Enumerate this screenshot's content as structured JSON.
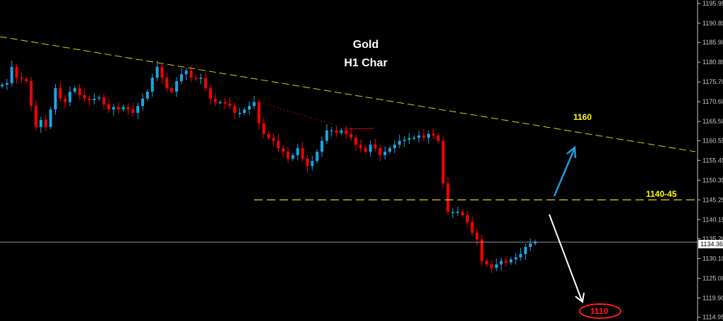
{
  "chart_data": {
    "type": "candlestick",
    "title": "Gold",
    "subtitle": "H1 Char",
    "ylim": [
      1114.95,
      1195.95
    ],
    "y_ticks": [
      "1195.95",
      "1190.85",
      "1185.90",
      "1180.80",
      "1175.70",
      "1170.60",
      "1165.50",
      "1160.55",
      "1155.45",
      "1150.35",
      "1145.25",
      "1140.15",
      "1135.20",
      "1130.10",
      "1125.00",
      "1119.90",
      "1114.95"
    ],
    "current_price": "1134.36",
    "grid": false,
    "colors": {
      "bull": "#1aa6e6",
      "bear": "#ff0000",
      "trendline": "#d4d400",
      "level": "#c8c800",
      "current": "#8a93a8"
    },
    "closes": [
      1175.0,
      1175.4,
      1179.6,
      1176.8,
      1176.5,
      1175.9,
      1169.5,
      1164.1,
      1165.9,
      1164.1,
      1168.6,
      1174.1,
      1171.4,
      1170.5,
      1173.2,
      1174.1,
      1172.3,
      1171.4,
      1171.0,
      1171.4,
      1171.7,
      1169.9,
      1168.6,
      1169.2,
      1168.6,
      1169.2,
      1168.6,
      1167.7,
      1169.5,
      1171.4,
      1173.2,
      1176.8,
      1179.6,
      1176.8,
      1174.1,
      1173.2,
      1175.9,
      1177.7,
      1178.6,
      1176.8,
      1176.5,
      1176.8,
      1174.1,
      1171.4,
      1170.5,
      1170.5,
      1170.1,
      1169.5,
      1167.7,
      1167.7,
      1168.6,
      1169.5,
      1170.5,
      1165.0,
      1162.3,
      1161.3,
      1160.5,
      1158.6,
      1157.7,
      1155.9,
      1156.8,
      1158.6,
      1155.9,
      1154.0,
      1155.3,
      1157.7,
      1160.5,
      1163.2,
      1163.2,
      1162.6,
      1163.2,
      1162.3,
      1161.3,
      1159.5,
      1158.6,
      1157.7,
      1159.5,
      1158.6,
      1156.8,
      1157.7,
      1158.6,
      1159.5,
      1160.5,
      1160.8,
      1161.2,
      1161.3,
      1161.9,
      1161.3,
      1162.3,
      1161.9,
      1160.5,
      1149.5,
      1142.2,
      1142.2,
      1142.2,
      1141.3,
      1139.5,
      1136.8,
      1135.0,
      1129.5,
      1128.6,
      1127.7,
      1128.6,
      1129.5,
      1129.1,
      1129.9,
      1130.4,
      1131.3,
      1133.1,
      1134.0,
      1134.4
    ],
    "lines": [
      {
        "kind": "trendline",
        "from_price": 1187.4,
        "to_price": 1157.7,
        "style": "dashed"
      },
      {
        "kind": "horizontal",
        "price": 1145.25,
        "style": "dashed"
      },
      {
        "kind": "horizontal",
        "price": 1134.36,
        "style": "solid"
      }
    ],
    "annotations": [
      {
        "text": "1160",
        "color": "#ffff00"
      },
      {
        "text": "1140-45",
        "color": "#ffff00"
      },
      {
        "text": "1110",
        "color": "#ff0000"
      }
    ],
    "arrows": [
      {
        "direction": "up",
        "color": "#1a9be0"
      },
      {
        "direction": "down",
        "color": "#ffffff"
      }
    ]
  }
}
